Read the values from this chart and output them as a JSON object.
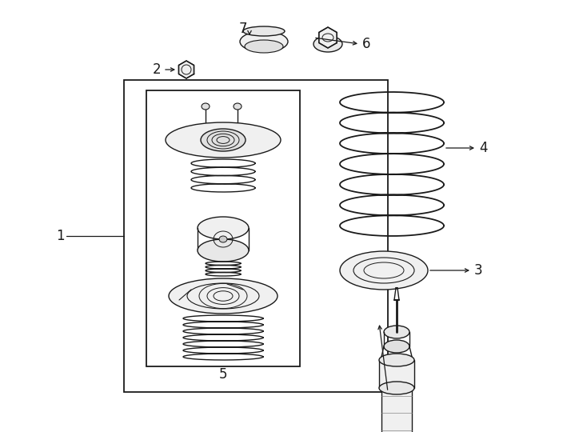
{
  "background_color": "#ffffff",
  "line_color": "#1a1a1a",
  "label_color": "#1a1a1a",
  "figsize": [
    7.34,
    5.4
  ],
  "dpi": 100
}
